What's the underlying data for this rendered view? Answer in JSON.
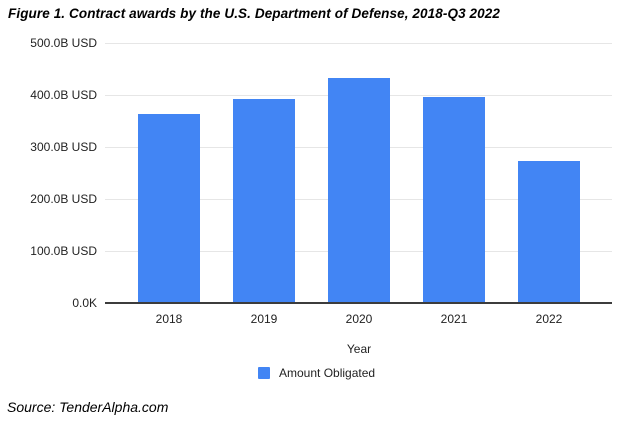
{
  "figure": {
    "title": "Figure 1. Contract awards by the U.S. Department of Defense, 2018-Q3 2022",
    "source": "Source: TenderAlpha.com"
  },
  "chart_data": {
    "type": "bar",
    "title": "Figure 1. Contract awards by the U.S. Department of Defense, 2018-Q3 2022",
    "categories": [
      "2018",
      "2019",
      "2020",
      "2021",
      "2022"
    ],
    "series": [
      {
        "name": "Amount Obligated",
        "values": [
          364,
          392,
          432,
          397,
          273
        ]
      }
    ],
    "values_unit": "B USD",
    "xlabel": "Year",
    "ylabel": "",
    "ylim": [
      0,
      500
    ],
    "ytick_labels": [
      "500.0B USD",
      "400.0B USD",
      "300.0B USD",
      "200.0B USD",
      "100.0B USD",
      "0.0K"
    ],
    "grid": true,
    "legend": {
      "position": "bottom",
      "entries": [
        {
          "label": "Amount Obligated",
          "color": "#4285f4"
        }
      ]
    },
    "colors": {
      "bar": "#4285f4",
      "gridline": "#e6e6e6",
      "baseline": "#3c3c3c",
      "text": "#222222"
    }
  }
}
